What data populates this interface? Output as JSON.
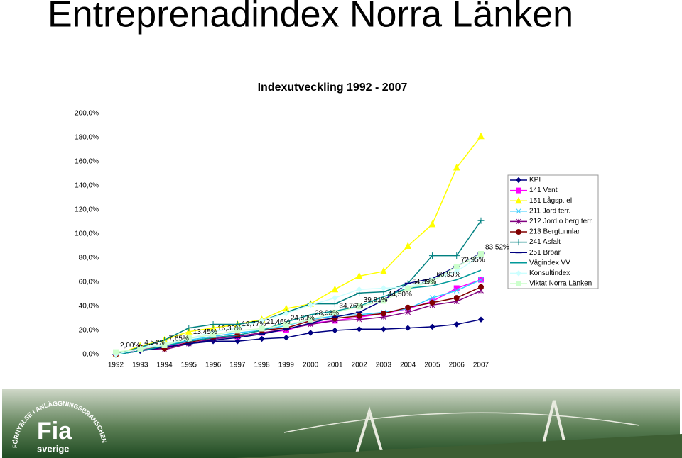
{
  "chart_data": {
    "type": "line",
    "heading": "Entreprenadindex Norra Länken",
    "title": "Indexutveckling 1992 - 2007",
    "categories": [
      "1992",
      "1993",
      "1994",
      "1995",
      "1996",
      "1997",
      "1998",
      "1999",
      "2000",
      "2001",
      "2002",
      "2003",
      "2004",
      "2005",
      "2006",
      "2007"
    ],
    "ylim": [
      0,
      200
    ],
    "yticks": [
      {
        "value": 0,
        "label": "0,0%"
      },
      {
        "value": 20,
        "label": "20,0%"
      },
      {
        "value": 40,
        "label": "40,0%"
      },
      {
        "value": 60,
        "label": "60,0%"
      },
      {
        "value": 80,
        "label": "80,0%"
      },
      {
        "value": 100,
        "label": "100,0%"
      },
      {
        "value": 120,
        "label": "120,0%"
      },
      {
        "value": 140,
        "label": "140,0%"
      },
      {
        "value": 160,
        "label": "160,0%"
      },
      {
        "value": 180,
        "label": "180,0%"
      },
      {
        "value": 200,
        "label": "200,0%"
      }
    ],
    "grid": false,
    "legend": "right",
    "series": [
      {
        "name": "KPI",
        "color": "#000080",
        "marker": "diamond",
        "values": [
          0,
          3,
          6,
          9,
          11,
          11,
          13,
          14,
          18,
          20,
          21,
          21,
          22,
          23,
          25,
          29
        ]
      },
      {
        "name": "141 Vent",
        "color": "#ff00ff",
        "marker": "square",
        "values": [
          0,
          5,
          6,
          11,
          14,
          15,
          18,
          20,
          26,
          28,
          31,
          34,
          38,
          44,
          55,
          62
        ]
      },
      {
        "name": "151 Lågsp. el",
        "color": "#ffff00",
        "marker": "triangle",
        "values": [
          0,
          7,
          12,
          19,
          22,
          25,
          29,
          38,
          42,
          54,
          65,
          69,
          90,
          108,
          155,
          181
        ]
      },
      {
        "name": "211 Jord terr.",
        "color": "#33ccff",
        "marker": "x",
        "values": [
          0,
          6,
          7,
          12,
          15,
          18,
          20,
          24,
          29,
          32,
          33,
          35,
          38,
          47,
          53,
          62
        ]
      },
      {
        "name": "212 Jord o berg terr.",
        "color": "#800080",
        "marker": "star",
        "values": [
          0,
          5,
          4,
          9,
          13,
          15,
          18,
          21,
          25,
          28,
          29,
          31,
          35,
          41,
          44,
          53
        ]
      },
      {
        "name": "213 Bergtunnlar",
        "color": "#800000",
        "marker": "circle",
        "values": [
          0,
          6,
          5,
          10,
          14,
          16,
          20,
          22,
          28,
          30,
          32,
          34,
          39,
          43,
          47,
          56
        ]
      },
      {
        "name": "241 Asfalt",
        "color": "#008080",
        "marker": "plus",
        "values": [
          0,
          6,
          12,
          22,
          25,
          25,
          28,
          35,
          42,
          42,
          51,
          52,
          59,
          82,
          82,
          111
        ]
      },
      {
        "name": "251 Broar",
        "color": "#000080",
        "marker": "dash",
        "values": [
          0,
          3,
          6,
          9,
          12,
          14,
          17,
          21,
          26,
          31,
          35,
          45,
          59,
          63,
          73,
          84
        ]
      },
      {
        "name": "Vägindex VV",
        "color": "#009999",
        "marker": "none",
        "values": [
          0,
          3,
          7,
          11,
          14,
          16,
          20,
          27,
          33,
          36,
          40,
          48,
          55,
          57,
          62,
          70
        ]
      },
      {
        "name": "Konsultindex",
        "color": "#ccffff",
        "marker": "diamond",
        "values": [
          0,
          5,
          9,
          13,
          19,
          22,
          28,
          34,
          41,
          47,
          54,
          55,
          56,
          62,
          69,
          82
        ]
      },
      {
        "name": "Viktat Norra Länken",
        "color": "#ccffcc",
        "marker": "square",
        "values": [
          2,
          4.54,
          7.65,
          13.45,
          16.33,
          19.77,
          21.46,
          24.69,
          28.93,
          34.76,
          39.81,
          44.5,
          54.89,
          60.93,
          72.95,
          83.52
        ],
        "value_labels": [
          "2,00%",
          "4,54%",
          "7,65%",
          "13,45%",
          "16,33%",
          "19,77%",
          "21,46%",
          "24,69%",
          "28,93%",
          "34,76%",
          "39,81%",
          "44,50%",
          "54,89%",
          "60,93%",
          "72,95%",
          "83,52%"
        ]
      }
    ]
  },
  "banner": {
    "logo": "Fia",
    "logo_sub": "sverige",
    "ring": "FÖRNYELSE I ANLÄGGNINGSBRANSCHEN"
  }
}
